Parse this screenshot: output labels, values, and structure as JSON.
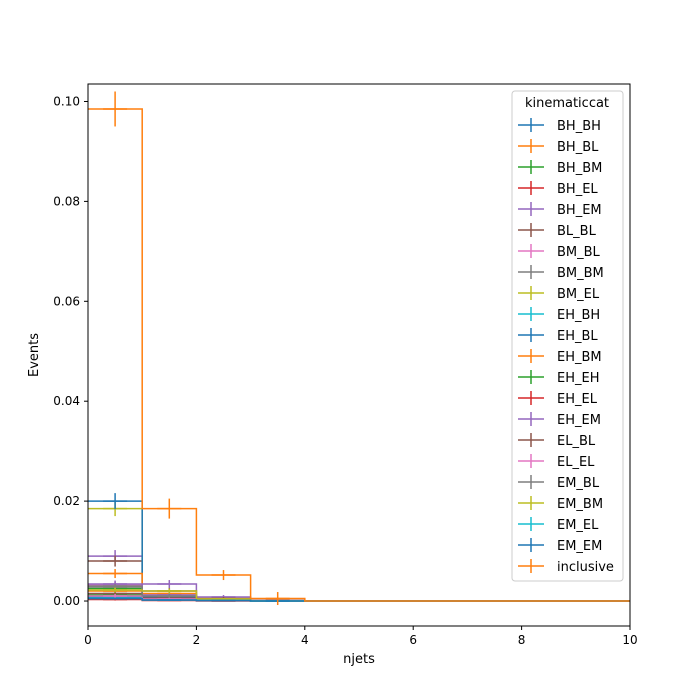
{
  "chart_data": {
    "type": "line",
    "xlabel": "njets",
    "ylabel": "Events",
    "xlim": [
      0,
      10
    ],
    "ylim": [
      -0.005,
      0.1035
    ],
    "x_ticks": [
      0,
      2,
      4,
      6,
      8,
      10
    ],
    "x_tick_labels": [
      "0",
      "2",
      "4",
      "6",
      "8",
      "10"
    ],
    "y_ticks": [
      0.0,
      0.02,
      0.04,
      0.06,
      0.08,
      0.1
    ],
    "y_tick_labels": [
      "0.00",
      "0.02",
      "0.04",
      "0.06",
      "0.08",
      "0.10"
    ],
    "grid": false,
    "legend": {
      "title": "kinematiccat",
      "placement": "top-right"
    },
    "bin_edges": [
      0,
      1,
      2,
      3,
      4,
      10
    ],
    "series": [
      {
        "name": "BH_BH",
        "color": "#1f77b4",
        "values": [
          0.0008,
          0.0003,
          0.0001,
          0.0,
          0.0
        ],
        "errors": [
          0.0003,
          0.0002,
          0.0001,
          0,
          0
        ]
      },
      {
        "name": "BH_BL",
        "color": "#ff7f0e",
        "values": [
          0.002,
          0.0008,
          0.0002,
          0.0,
          0.0
        ],
        "errors": [
          0.0005,
          0.0003,
          0.0001,
          0,
          0
        ]
      },
      {
        "name": "BH_BM",
        "color": "#2ca02c",
        "values": [
          0.0025,
          0.001,
          0.0002,
          0.0,
          0.0
        ],
        "errors": [
          0.0006,
          0.0003,
          0.0001,
          0,
          0
        ]
      },
      {
        "name": "BH_EL",
        "color": "#d62728",
        "values": [
          0.0004,
          0.0002,
          0.0001,
          0.0,
          0.0
        ],
        "errors": [
          0.0002,
          0.0001,
          0.0001,
          0,
          0
        ]
      },
      {
        "name": "BH_EM",
        "color": "#9467bd",
        "values": [
          0.009,
          0.0034,
          0.0008,
          0.0001,
          0.0
        ],
        "errors": [
          0.0012,
          0.0008,
          0.0004,
          0.0001,
          0
        ]
      },
      {
        "name": "BL_BL",
        "color": "#8c564b",
        "values": [
          0.008,
          0.002,
          0.0005,
          0.0001,
          0.0
        ],
        "errors": [
          0.0011,
          0.0006,
          0.0003,
          0.0001,
          0
        ]
      },
      {
        "name": "BM_BL",
        "color": "#e377c2",
        "values": [
          0.0032,
          0.0012,
          0.0003,
          0.0,
          0.0
        ],
        "errors": [
          0.0007,
          0.0004,
          0.0002,
          0,
          0
        ]
      },
      {
        "name": "BM_BM",
        "color": "#7f7f7f",
        "values": [
          0.003,
          0.001,
          0.0003,
          0.0,
          0.0
        ],
        "errors": [
          0.0007,
          0.0004,
          0.0002,
          0,
          0
        ]
      },
      {
        "name": "BM_EL",
        "color": "#bcbd22",
        "values": [
          0.0185,
          0.001,
          0.0003,
          0.0,
          0.0
        ],
        "errors": [
          0.0015,
          0.0004,
          0.0002,
          0,
          0
        ]
      },
      {
        "name": "EH_BH",
        "color": "#17becf",
        "values": [
          0.0006,
          0.0002,
          0.0001,
          0.0,
          0.0
        ],
        "errors": [
          0.0003,
          0.0002,
          0.0001,
          0,
          0
        ]
      },
      {
        "name": "EH_BL",
        "color": "#1f77b4",
        "values": [
          0.02,
          0.0008,
          0.0002,
          0.0,
          0.0
        ],
        "errors": [
          0.0016,
          0.0004,
          0.0001,
          0,
          0
        ]
      },
      {
        "name": "EH_BM",
        "color": "#ff7f0e",
        "values": [
          0.0055,
          0.0015,
          0.0004,
          0.0,
          0.0
        ],
        "errors": [
          0.0009,
          0.0005,
          0.0002,
          0,
          0
        ]
      },
      {
        "name": "EH_EH",
        "color": "#2ca02c",
        "values": [
          0.0012,
          0.0004,
          0.0001,
          0.0,
          0.0
        ],
        "errors": [
          0.0004,
          0.0002,
          0.0001,
          0,
          0
        ]
      },
      {
        "name": "EH_EL",
        "color": "#d62728",
        "values": [
          0.0003,
          0.0001,
          0.0,
          0.0,
          0.0
        ],
        "errors": [
          0.0002,
          0.0001,
          0,
          0,
          0
        ]
      },
      {
        "name": "EH_EM",
        "color": "#9467bd",
        "values": [
          0.0034,
          0.0012,
          0.0003,
          0.0,
          0.0
        ],
        "errors": [
          0.0007,
          0.0004,
          0.0002,
          0,
          0
        ]
      },
      {
        "name": "EL_BL",
        "color": "#8c564b",
        "values": [
          0.0015,
          0.0006,
          0.0002,
          0.0,
          0.0
        ],
        "errors": [
          0.0004,
          0.0003,
          0.0001,
          0,
          0
        ]
      },
      {
        "name": "EL_EL",
        "color": "#e377c2",
        "values": [
          0.001,
          0.0004,
          0.0001,
          0.0,
          0.0
        ],
        "errors": [
          0.0004,
          0.0002,
          0.0001,
          0,
          0
        ]
      },
      {
        "name": "EM_BL",
        "color": "#7f7f7f",
        "values": [
          0.0028,
          0.001,
          0.0003,
          0.0,
          0.0
        ],
        "errors": [
          0.0006,
          0.0004,
          0.0002,
          0,
          0
        ]
      },
      {
        "name": "EM_BM",
        "color": "#bcbd22",
        "values": [
          0.0022,
          0.002,
          0.0004,
          0.0,
          0.0
        ],
        "errors": [
          0.0005,
          0.0005,
          0.0002,
          0,
          0
        ]
      },
      {
        "name": "EM_EL",
        "color": "#17becf",
        "values": [
          0.0005,
          0.0002,
          0.0001,
          0.0,
          0.0
        ],
        "errors": [
          0.0002,
          0.0001,
          0.0001,
          0,
          0
        ]
      },
      {
        "name": "EM_EM",
        "color": "#1f77b4",
        "values": [
          0.0005,
          0.0002,
          0.0001,
          0.0,
          0.0
        ],
        "errors": [
          0.0002,
          0.0001,
          0.0001,
          0,
          0
        ]
      },
      {
        "name": "inclusive",
        "color": "#ff7f0e",
        "values": [
          0.0985,
          0.0185,
          0.0052,
          0.0005,
          0.0
        ],
        "errors": [
          0.0035,
          0.002,
          0.001,
          0.0013,
          0
        ]
      }
    ]
  }
}
